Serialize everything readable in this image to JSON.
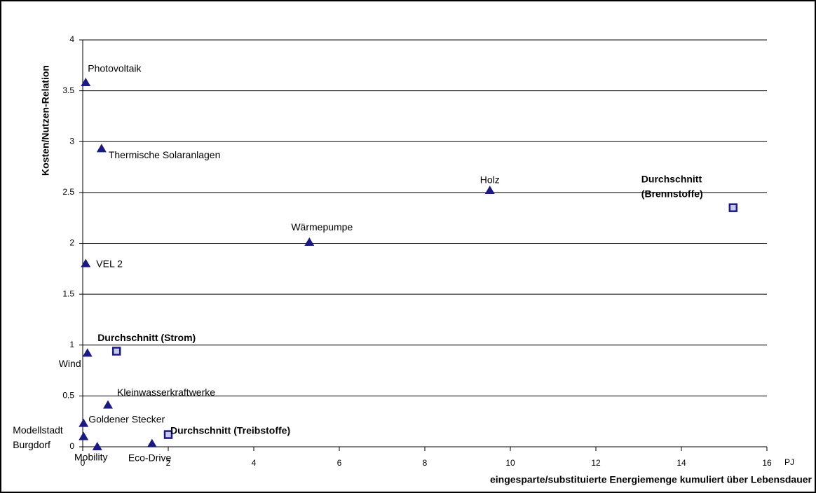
{
  "chart_data": {
    "type": "scatter",
    "x_label": "eingesparte/substituierte Energiemenge kumuliert über Lebensdauer",
    "x_unit": "PJ",
    "y_label": "Kosten/Nutzen-Relation",
    "xlim": [
      0,
      16
    ],
    "xticks": [
      0,
      2,
      4,
      6,
      8,
      10,
      12,
      14,
      16
    ],
    "ylim": [
      0,
      4
    ],
    "yticks": [
      0,
      0.5,
      1,
      1.5,
      2,
      2.5,
      3,
      3.5,
      4
    ],
    "grid": true,
    "color": "#1a1a80",
    "points": [
      {
        "label": "Photovoltaik",
        "x": 0.07,
        "y": 3.58,
        "marker": "triangle"
      },
      {
        "label": "Thermische Solaranlagen",
        "x": 0.44,
        "y": 2.93,
        "marker": "triangle"
      },
      {
        "label": "Holz",
        "x": 9.52,
        "y": 2.52,
        "marker": "triangle"
      },
      {
        "label": "Wärmepumpe",
        "x": 5.3,
        "y": 2.01,
        "marker": "triangle"
      },
      {
        "label": "VEL 2",
        "x": 0.07,
        "y": 1.8,
        "marker": "triangle"
      },
      {
        "label": "Wind",
        "x": 0.11,
        "y": 0.92,
        "marker": "triangle"
      },
      {
        "label": "Kleinwasserkraftwerke",
        "x": 0.59,
        "y": 0.41,
        "marker": "triangle"
      },
      {
        "label": "Goldener Stecker",
        "x": 0.02,
        "y": 0.23,
        "marker": "triangle"
      },
      {
        "label": [
          "Modellstadt",
          "Burgdorf"
        ],
        "x": 0.02,
        "y": 0.1,
        "marker": "triangle"
      },
      {
        "label": "Mobility",
        "x": 0.34,
        "y": 0.0,
        "marker": "triangle"
      },
      {
        "label": "Eco-Drive",
        "x": 1.62,
        "y": 0.03,
        "marker": "triangle"
      },
      {
        "label": "Durchschnitt (Strom)",
        "x": 0.79,
        "y": 0.94,
        "marker": "square"
      },
      {
        "label": [
          "Durchschnitt",
          "(Brennstoffe)"
        ],
        "x": 15.21,
        "y": 2.35,
        "marker": "square"
      },
      {
        "label": "Durchschnitt (Treibstoffe)",
        "x": 2.0,
        "y": 0.12,
        "marker": "square"
      }
    ]
  }
}
